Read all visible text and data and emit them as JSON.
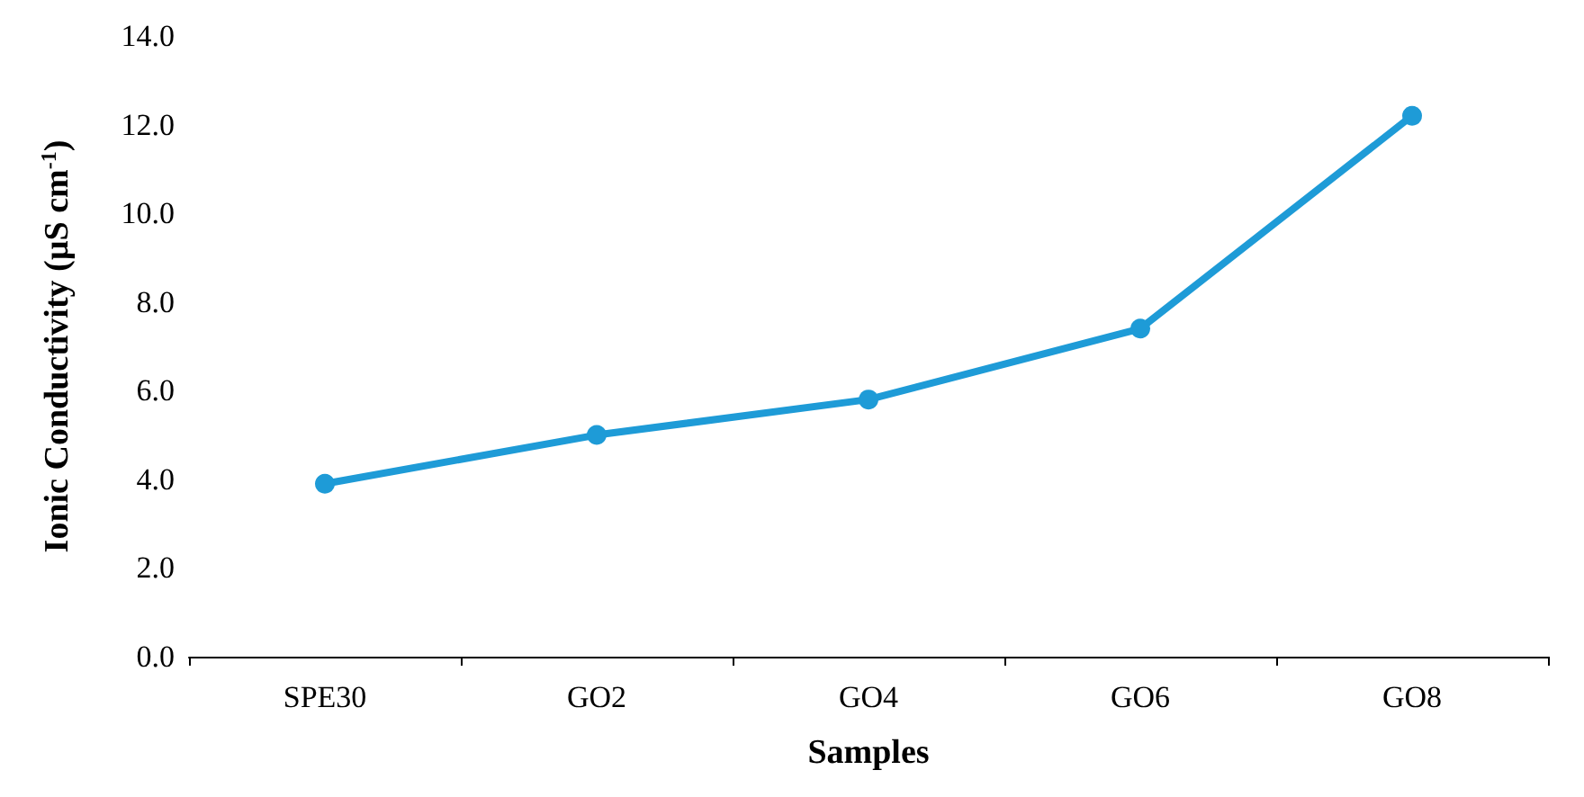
{
  "chart_data": {
    "type": "line",
    "xlabel": "Samples",
    "ylabel": "Ionic Conductivity (µS cm$^{-1}$)",
    "categories": [
      "SPE30",
      "GO2",
      "GO4",
      "GO6",
      "GO8"
    ],
    "series": [
      {
        "color": "#1e9bd7",
        "values": [
          3.9,
          5.0,
          5.8,
          7.4,
          12.2
        ]
      }
    ],
    "ylim": [
      0,
      14
    ],
    "yticks": [
      {
        "value": 0,
        "label": "0.0"
      },
      {
        "value": 2,
        "label": "2.0"
      },
      {
        "value": 4,
        "label": "4.0"
      },
      {
        "value": 6,
        "label": "6.0"
      },
      {
        "value": 8,
        "label": "8.0"
      },
      {
        "value": 10,
        "label": "10.0"
      },
      {
        "value": 12,
        "label": "12.0"
      },
      {
        "value": 14,
        "label": "14.0"
      }
    ],
    "grid": false,
    "marker": "circle",
    "line_style": "solid"
  }
}
